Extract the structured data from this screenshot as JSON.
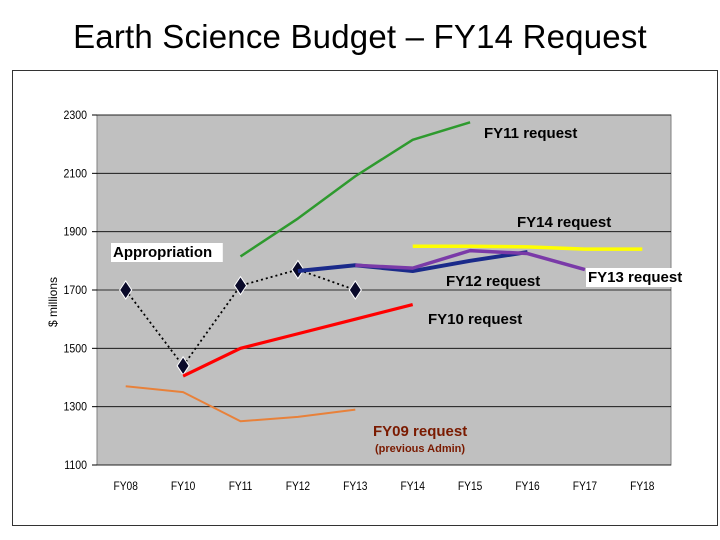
{
  "slide": {
    "title": "Earth Science Budget – FY14 Request"
  },
  "chart_data": {
    "type": "line",
    "ylabel": "$ millions",
    "ylim": [
      1100,
      2300
    ],
    "yticks": [
      1100,
      1300,
      1500,
      1700,
      1900,
      2100,
      2300
    ],
    "categories": [
      "FY08",
      "FY10",
      "FY11",
      "FY12",
      "FY13",
      "FY14",
      "FY15",
      "FY16",
      "FY17",
      "FY18"
    ],
    "background_color": "#c0c0c0",
    "grid": "horizontal",
    "series": [
      {
        "name": "Appropriation",
        "color": "#000000",
        "style": "dotted-diamond",
        "points": [
          [
            "FY08",
            1700
          ],
          [
            "FY10",
            1440
          ],
          [
            "FY11",
            1715
          ],
          [
            "FY12",
            1770
          ],
          [
            "FY13",
            1700
          ]
        ]
      },
      {
        "name": "FY09 request",
        "sublabel": "(previous Admin)",
        "color": "#e8813a",
        "points": [
          [
            "FY08",
            1370
          ],
          [
            "FY10",
            1350
          ],
          [
            "FY11",
            1250
          ],
          [
            "FY12",
            1265
          ],
          [
            "FY13",
            1290
          ]
        ]
      },
      {
        "name": "FY10 request",
        "color": "#ff0000",
        "points": [
          [
            "FY10",
            1405
          ],
          [
            "FY11",
            1500
          ],
          [
            "FY12",
            1550
          ],
          [
            "FY13",
            1600
          ],
          [
            "FY14",
            1650
          ]
        ]
      },
      {
        "name": "FY11 request",
        "color": "#2e9a2e",
        "points": [
          [
            "FY11",
            1815
          ],
          [
            "FY12",
            1945
          ],
          [
            "FY13",
            2090
          ],
          [
            "FY14",
            2215
          ],
          [
            "FY15",
            2275
          ]
        ]
      },
      {
        "name": "FY12 request",
        "color": "#1a2a8a",
        "points": [
          [
            "FY12",
            1765
          ],
          [
            "FY13",
            1785
          ],
          [
            "FY14",
            1765
          ],
          [
            "FY15",
            1800
          ],
          [
            "FY16",
            1830
          ]
        ]
      },
      {
        "name": "FY13 request",
        "color": "#7a3aa8",
        "points": [
          [
            "FY13",
            1785
          ],
          [
            "FY14",
            1775
          ],
          [
            "FY15",
            1835
          ],
          [
            "FY16",
            1825
          ],
          [
            "FY17",
            1770
          ]
        ]
      },
      {
        "name": "FY14 request",
        "color": "#ffff00",
        "points": [
          [
            "FY14",
            1850
          ],
          [
            "FY15",
            1850
          ],
          [
            "FY16",
            1848
          ],
          [
            "FY17",
            1840
          ],
          [
            "FY18",
            1840
          ]
        ]
      }
    ]
  }
}
